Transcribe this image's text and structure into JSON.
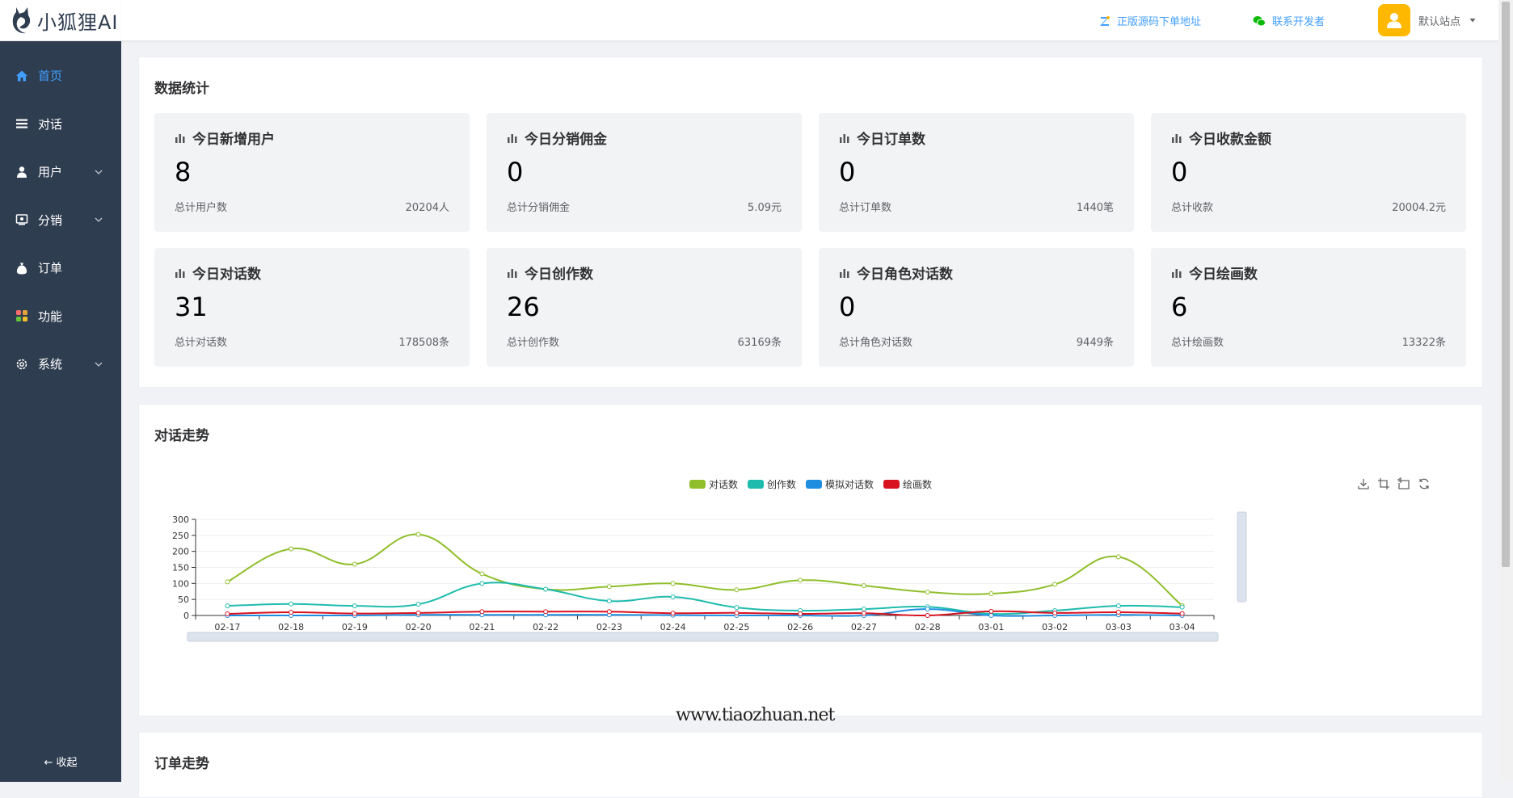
{
  "app": {
    "logo_text": "小狐狸AI"
  },
  "sidebar": {
    "items": [
      {
        "label": "首页",
        "icon": "home-icon",
        "active": true,
        "has_children": false
      },
      {
        "label": "对话",
        "icon": "list-icon",
        "active": false,
        "has_children": false
      },
      {
        "label": "用户",
        "icon": "user-icon",
        "active": false,
        "has_children": true
      },
      {
        "label": "分销",
        "icon": "distribution-icon",
        "active": false,
        "has_children": true
      },
      {
        "label": "订单",
        "icon": "money-bag-icon",
        "active": false,
        "has_children": false
      },
      {
        "label": "功能",
        "icon": "apps-icon",
        "active": false,
        "has_children": false
      },
      {
        "label": "系统",
        "icon": "gear-icon",
        "active": false,
        "has_children": true
      }
    ],
    "collapse_label": "收起"
  },
  "header": {
    "link_source": "正版源码下单地址",
    "link_contact": "联系开发者",
    "site_name": "默认站点"
  },
  "stats": {
    "title": "数据统计",
    "cards": [
      {
        "title": "今日新增用户",
        "value": "8",
        "total_label": "总计用户数",
        "total_value": "20204人"
      },
      {
        "title": "今日分销佣金",
        "value": "0",
        "total_label": "总计分销佣金",
        "total_value": "5.09元"
      },
      {
        "title": "今日订单数",
        "value": "0",
        "total_label": "总计订单数",
        "total_value": "1440笔"
      },
      {
        "title": "今日收款金额",
        "value": "0",
        "total_label": "总计收款",
        "total_value": "20004.2元"
      },
      {
        "title": "今日对话数",
        "value": "31",
        "total_label": "总计对话数",
        "total_value": "178508条"
      },
      {
        "title": "今日创作数",
        "value": "26",
        "total_label": "总计创作数",
        "total_value": "63169条"
      },
      {
        "title": "今日角色对话数",
        "value": "0",
        "total_label": "总计角色对话数",
        "total_value": "9449条"
      },
      {
        "title": "今日绘画数",
        "value": "6",
        "total_label": "总计绘画数",
        "total_value": "13322条"
      }
    ]
  },
  "trend": {
    "title": "对话走势"
  },
  "orders_trend": {
    "title": "订单走势"
  },
  "watermark": "www.tiaozhuan.net",
  "chart_data": {
    "type": "line",
    "x": [
      "02-17",
      "02-18",
      "02-19",
      "02-20",
      "02-21",
      "02-22",
      "02-23",
      "02-24",
      "02-25",
      "02-26",
      "02-27",
      "02-28",
      "03-01",
      "03-02",
      "03-03",
      "03-04"
    ],
    "ylim": [
      0,
      300
    ],
    "yticks": [
      "0",
      "50",
      "100",
      "150",
      "200",
      "250",
      "300"
    ],
    "series": [
      {
        "name": "对话数",
        "color": "#8fbe2a",
        "values": [
          105,
          208,
          160,
          253,
          130,
          82,
          90,
          100,
          80,
          110,
          93,
          73,
          68,
          97,
          183,
          31
        ]
      },
      {
        "name": "创作数",
        "color": "#1fbcae",
        "values": [
          30,
          36,
          30,
          35,
          100,
          82,
          45,
          58,
          25,
          15,
          20,
          27,
          5,
          15,
          30,
          26
        ]
      },
      {
        "name": "模拟对话数",
        "color": "#1f8ee0",
        "values": [
          0,
          0,
          0,
          2,
          2,
          2,
          2,
          1,
          0,
          0,
          0,
          20,
          0,
          0,
          2,
          0
        ]
      },
      {
        "name": "绘画数",
        "color": "#d8121f",
        "values": [
          5,
          10,
          6,
          8,
          12,
          12,
          12,
          7,
          8,
          5,
          7,
          0,
          13,
          8,
          10,
          6
        ]
      }
    ],
    "grid": true,
    "legend": "top-center"
  }
}
